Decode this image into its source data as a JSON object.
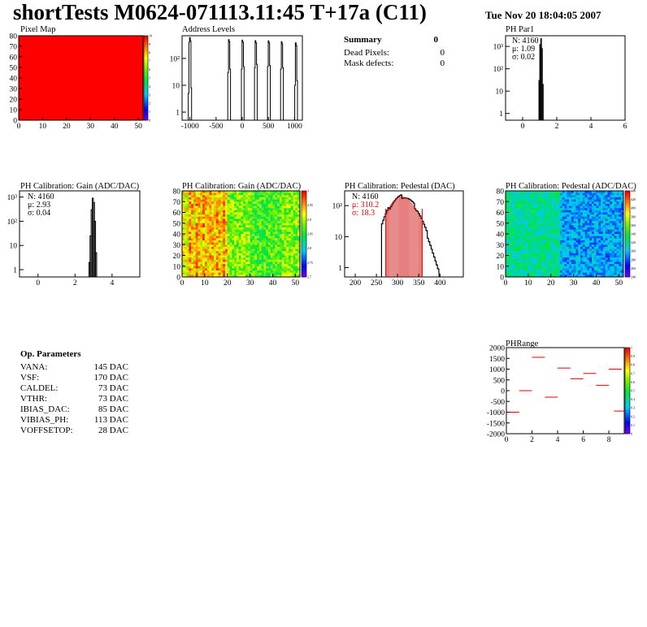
{
  "page": {
    "title": "shortTests M0624-071113.11:45 T+17a (C11)",
    "date": "Tue Nov 20 18:04:05 2007"
  },
  "summary": {
    "title": "Summary",
    "value": "0",
    "rows": [
      {
        "label": "Dead Pixels:",
        "value": "0"
      },
      {
        "label": "Mask defects:",
        "value": "0"
      }
    ]
  },
  "op_params": {
    "title": "Op. Parameters",
    "rows": [
      {
        "label": "VANA:",
        "value": "145 DAC"
      },
      {
        "label": "VSF:",
        "value": "170 DAC"
      },
      {
        "label": "CALDEL:",
        "value": "73 DAC"
      },
      {
        "label": "VTHR:",
        "value": "73 DAC"
      },
      {
        "label": "IBIAS_DAC:",
        "value": "85 DAC"
      },
      {
        "label": "VIBIAS_PH:",
        "value": "113 DAC"
      },
      {
        "label": "VOFFSETOP:",
        "value": "28 DAC"
      }
    ]
  },
  "chart_data": [
    {
      "id": "pixelmap",
      "type": "heatmap",
      "title": "Pixel Map",
      "xlim": [
        0,
        52
      ],
      "ylim": [
        0,
        80
      ],
      "xticks": [
        0,
        10,
        20,
        30,
        40,
        50
      ],
      "yticks": [
        0,
        10,
        20,
        30,
        40,
        50,
        60,
        70,
        80
      ],
      "uniform_value": 10,
      "zlim": [
        0,
        10
      ],
      "zticks": [
        "0",
        "1",
        "2",
        "3",
        "4",
        "5",
        "6",
        "7",
        "8",
        "9",
        "10"
      ]
    },
    {
      "id": "address",
      "type": "bar",
      "title": "Address Levels",
      "log_y": true,
      "xlim": [
        -1150,
        1150
      ],
      "ylim": [
        0.5,
        700
      ],
      "xticks": [
        -1000,
        -500,
        0,
        500,
        1000
      ],
      "yticks": [
        {
          "v": 1,
          "label": "1"
        },
        {
          "v": 10,
          "label": "10"
        },
        {
          "v": 100,
          "label": "10²"
        }
      ],
      "peaks": [
        {
          "x": -1000,
          "values": [
            5,
            400,
            600,
            450,
            8
          ]
        },
        {
          "x": -250,
          "values": [
            30,
            500,
            420,
            40
          ]
        },
        {
          "x": 10,
          "values": [
            40,
            480,
            400,
            50
          ]
        },
        {
          "x": 260,
          "values": [
            45,
            460,
            380,
            60
          ]
        },
        {
          "x": 510,
          "values": [
            50,
            450,
            380,
            55
          ]
        },
        {
          "x": 760,
          "values": [
            40,
            420,
            350,
            45
          ]
        },
        {
          "x": 1030,
          "values": [
            10,
            380,
            300,
            15
          ]
        }
      ]
    },
    {
      "id": "phpar1",
      "type": "bar",
      "title": "PH Par1",
      "log_y": true,
      "xlim": [
        -1,
        6
      ],
      "ylim": [
        0.5,
        3000
      ],
      "xticks": [
        0,
        2,
        4,
        6
      ],
      "yticks": [
        {
          "v": 1,
          "label": "1"
        },
        {
          "v": 10,
          "label": "10"
        },
        {
          "v": 100,
          "label": "10²"
        },
        {
          "v": 1000,
          "label": "10³"
        }
      ],
      "bins": [
        {
          "x": 0.98,
          "y": 30
        },
        {
          "x": 1.03,
          "y": 1200
        },
        {
          "x": 1.08,
          "y": 2200
        },
        {
          "x": 1.13,
          "y": 800
        },
        {
          "x": 1.18,
          "y": 20
        }
      ],
      "stats": [
        "N: 4160",
        "μ: 1.09",
        "σ: 0.02"
      ]
    },
    {
      "id": "gain_hist",
      "type": "bar",
      "title": "PH Calibration: Gain (ADC/DAC)",
      "log_y": true,
      "xlim": [
        -1,
        5.5
      ],
      "ylim": [
        0.5,
        1800
      ],
      "xticks": [
        0,
        2,
        4
      ],
      "yticks": [
        {
          "v": 1,
          "label": "1"
        },
        {
          "v": 10,
          "label": "10"
        },
        {
          "v": 100,
          "label": "10²"
        },
        {
          "v": 1000,
          "label": "10³"
        }
      ],
      "bins": [
        {
          "x": 2.78,
          "y": 2
        },
        {
          "x": 2.84,
          "y": 25
        },
        {
          "x": 2.9,
          "y": 300
        },
        {
          "x": 2.96,
          "y": 900
        },
        {
          "x": 3.02,
          "y": 600
        },
        {
          "x": 3.08,
          "y": 100
        },
        {
          "x": 3.14,
          "y": 5
        }
      ],
      "stats": [
        "N: 4160",
        "μ: 2.93",
        "σ: 0.04"
      ]
    },
    {
      "id": "gain_map",
      "type": "heatmap",
      "title": "PH Calibration: Gain (ADC/DAC)",
      "xlim": [
        0,
        52
      ],
      "ylim": [
        0,
        80
      ],
      "xticks": [
        0,
        10,
        20,
        30,
        40,
        50
      ],
      "yticks": [
        0,
        10,
        20,
        30,
        40,
        50,
        60,
        70,
        80
      ],
      "zticks": [
        "2.7",
        "2.75",
        "2.8",
        "2.85",
        "2.9",
        "2.95",
        "3"
      ]
    },
    {
      "id": "ped_hist",
      "type": "bar",
      "title": "PH Calibration: Pedestal (DAC)",
      "log_y": true,
      "xlim": [
        175,
        455
      ],
      "ylim": [
        0.5,
        300
      ],
      "xticks": [
        200,
        250,
        300,
        350,
        400
      ],
      "yticks": [
        {
          "v": 1,
          "label": "1"
        },
        {
          "v": 10,
          "label": "10"
        },
        {
          "v": 100,
          "label": "10²"
        }
      ],
      "stats": [
        "N: 4160",
        "μ: 310.2",
        "σ: 18.3"
      ],
      "fit_range": [
        272,
        358
      ]
    },
    {
      "id": "ped_map",
      "type": "heatmap",
      "title": "PH Calibration: Pedestal (ADC/DAC)",
      "xlim": [
        0,
        52
      ],
      "ylim": [
        0,
        80
      ],
      "xticks": [
        0,
        10,
        20,
        30,
        40,
        50
      ],
      "yticks": [
        0,
        10,
        20,
        30,
        40,
        50,
        60,
        70,
        80
      ],
      "zticks": [
        "240",
        "260",
        "280",
        "300",
        "320",
        "340",
        "360",
        "380",
        "400",
        "420",
        "440"
      ]
    },
    {
      "id": "phrange",
      "type": "scatter",
      "title": "PHRange",
      "xlim": [
        0,
        9.2
      ],
      "ylim": [
        -2000,
        2000
      ],
      "xticks": [
        0,
        2,
        4,
        6,
        8
      ],
      "yticks": [
        -2000,
        -1500,
        -1000,
        -500,
        0,
        500,
        1000,
        1500,
        2000
      ],
      "segments": [
        {
          "x": 0.5,
          "y": -1000
        },
        {
          "x": 1.5,
          "y": 0
        },
        {
          "x": 2.5,
          "y": 1550
        },
        {
          "x": 3.5,
          "y": -300
        },
        {
          "x": 4.5,
          "y": 1050
        },
        {
          "x": 5.5,
          "y": 550
        },
        {
          "x": 6.5,
          "y": 800
        },
        {
          "x": 7.5,
          "y": 250
        },
        {
          "x": 8.5,
          "y": 1000
        },
        {
          "x": 8.9,
          "y": -950
        }
      ],
      "zticks": [
        "0",
        "0.1",
        "0.2",
        "0.3",
        "0.4",
        "0.5",
        "0.6",
        "0.7",
        "0.8",
        "0.9",
        "1"
      ]
    }
  ]
}
